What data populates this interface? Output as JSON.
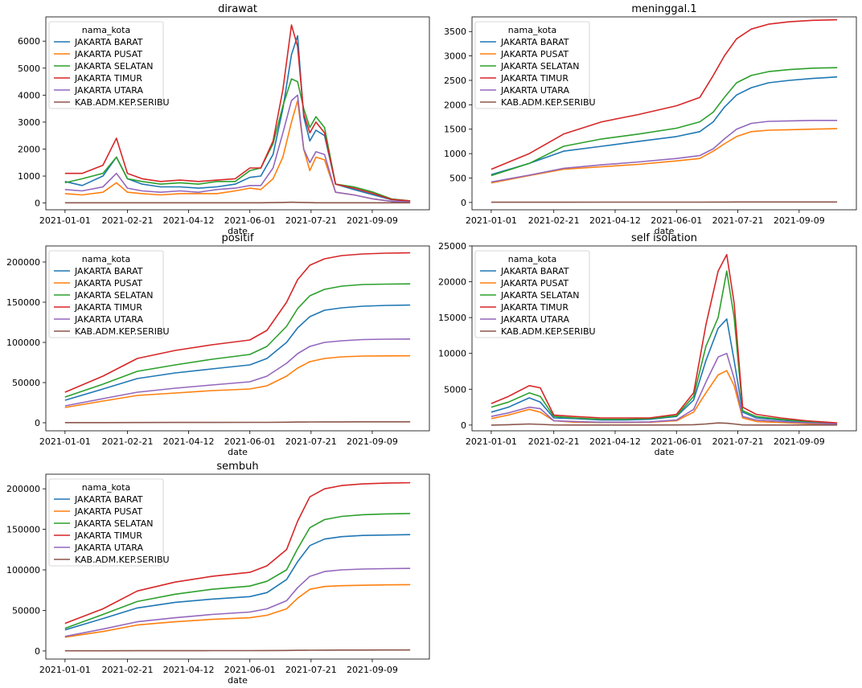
{
  "chart_data": [
    {
      "type": "line",
      "title": "dirawat",
      "xlabel": "date",
      "ylabel": "",
      "xticks": [
        "2021-01-01",
        "2021-02-21",
        "2021-04-12",
        "2021-06-01",
        "2021-07-21",
        "2021-09-09"
      ],
      "ylim": [
        -250,
        6900
      ],
      "yticks": [
        0,
        1000,
        2000,
        3000,
        4000,
        5000,
        6000
      ],
      "legend": {
        "title": "nama_kota",
        "position": "top-left"
      },
      "x": [
        "2021-01-01",
        "2021-01-15",
        "2021-02-01",
        "2021-02-12",
        "2021-02-21",
        "2021-03-05",
        "2021-03-20",
        "2021-04-05",
        "2021-04-20",
        "2021-05-05",
        "2021-05-20",
        "2021-06-01",
        "2021-06-10",
        "2021-06-20",
        "2021-06-28",
        "2021-07-05",
        "2021-07-10",
        "2021-07-15",
        "2021-07-20",
        "2021-07-25",
        "2021-08-01",
        "2021-08-10",
        "2021-08-25",
        "2021-09-10",
        "2021-09-25",
        "2021-10-10"
      ],
      "series": [
        {
          "name": "JAKARTA BARAT",
          "color": "#1f77b4",
          "values": [
            800,
            650,
            1000,
            1700,
            900,
            700,
            600,
            600,
            550,
            600,
            700,
            950,
            1000,
            1800,
            3500,
            5500,
            6200,
            3200,
            2300,
            2700,
            2500,
            700,
            500,
            300,
            120,
            70
          ]
        },
        {
          "name": "JAKARTA PUSAT",
          "color": "#ff7f0e",
          "values": [
            350,
            300,
            400,
            750,
            400,
            350,
            300,
            350,
            350,
            350,
            450,
            550,
            500,
            900,
            1700,
            3000,
            3800,
            2000,
            1200,
            1700,
            1600,
            400,
            300,
            150,
            60,
            40
          ]
        },
        {
          "name": "JAKARTA SELATAN",
          "color": "#2ca02c",
          "values": [
            750,
            900,
            1100,
            1700,
            900,
            800,
            700,
            750,
            700,
            800,
            800,
            1200,
            1300,
            2200,
            3600,
            4600,
            4500,
            3500,
            2800,
            3200,
            2800,
            700,
            600,
            400,
            150,
            80
          ]
        },
        {
          "name": "JAKARTA TIMUR",
          "color": "#d62728",
          "values": [
            1100,
            1100,
            1400,
            2400,
            1100,
            900,
            800,
            850,
            800,
            850,
            900,
            1300,
            1300,
            2300,
            4200,
            6600,
            5800,
            3300,
            2600,
            3000,
            2600,
            700,
            550,
            350,
            130,
            80
          ]
        },
        {
          "name": "JAKARTA UTARA",
          "color": "#9467bd",
          "values": [
            500,
            450,
            600,
            1100,
            550,
            450,
            400,
            450,
            400,
            500,
            550,
            650,
            650,
            1300,
            2600,
            3800,
            4000,
            2000,
            1500,
            1900,
            1800,
            400,
            300,
            150,
            60,
            40
          ]
        },
        {
          "name": "KAB.ADM.KEP.SERIBU",
          "color": "#8c564b",
          "values": [
            10,
            10,
            10,
            10,
            10,
            10,
            10,
            10,
            10,
            10,
            10,
            10,
            10,
            15,
            20,
            30,
            25,
            20,
            15,
            10,
            10,
            10,
            10,
            10,
            10,
            10
          ]
        }
      ]
    },
    {
      "type": "line",
      "title": "meninggal.1",
      "xlabel": "date",
      "ylabel": "",
      "xticks": [
        "2021-01-01",
        "2021-02-21",
        "2021-04-12",
        "2021-06-01",
        "2021-07-21",
        "2021-09-09"
      ],
      "ylim": [
        -150,
        3800
      ],
      "yticks": [
        0,
        500,
        1000,
        1500,
        2000,
        2500,
        3000,
        3500
      ],
      "legend": {
        "title": "nama_kota",
        "position": "top-left"
      },
      "x": [
        "2021-01-01",
        "2021-02-01",
        "2021-03-01",
        "2021-04-01",
        "2021-05-01",
        "2021-06-01",
        "2021-06-20",
        "2021-07-01",
        "2021-07-10",
        "2021-07-20",
        "2021-08-01",
        "2021-08-15",
        "2021-09-01",
        "2021-09-20",
        "2021-10-10"
      ],
      "series": [
        {
          "name": "JAKARTA BARAT",
          "color": "#1f77b4",
          "values": [
            570,
            800,
            1050,
            1150,
            1250,
            1350,
            1450,
            1650,
            1950,
            2200,
            2350,
            2450,
            2500,
            2540,
            2570
          ]
        },
        {
          "name": "JAKARTA PUSAT",
          "color": "#ff7f0e",
          "values": [
            400,
            550,
            680,
            730,
            780,
            850,
            900,
            1050,
            1200,
            1350,
            1450,
            1480,
            1490,
            1500,
            1510
          ]
        },
        {
          "name": "JAKARTA SELATAN",
          "color": "#2ca02c",
          "values": [
            550,
            800,
            1150,
            1300,
            1400,
            1520,
            1650,
            1850,
            2150,
            2450,
            2600,
            2680,
            2720,
            2750,
            2760
          ]
        },
        {
          "name": "JAKARTA TIMUR",
          "color": "#d62728",
          "values": [
            680,
            1000,
            1400,
            1650,
            1800,
            1980,
            2150,
            2600,
            3000,
            3350,
            3550,
            3650,
            3700,
            3730,
            3740
          ]
        },
        {
          "name": "JAKARTA UTARA",
          "color": "#9467bd",
          "values": [
            420,
            560,
            700,
            770,
            830,
            900,
            960,
            1100,
            1300,
            1500,
            1620,
            1660,
            1670,
            1680,
            1680
          ]
        },
        {
          "name": "KAB.ADM.KEP.SERIBU",
          "color": "#8c564b",
          "values": [
            5,
            5,
            5,
            6,
            6,
            7,
            7,
            8,
            8,
            9,
            10,
            10,
            10,
            10,
            10
          ]
        }
      ]
    },
    {
      "type": "line",
      "title": "positif",
      "xlabel": "date",
      "ylabel": "",
      "xticks": [
        "2021-01-01",
        "2021-02-21",
        "2021-04-12",
        "2021-06-01",
        "2021-07-21",
        "2021-09-09"
      ],
      "ylim": [
        -10000,
        220000
      ],
      "yticks": [
        0,
        50000,
        100000,
        150000,
        200000
      ],
      "legend": {
        "title": "nama_kota",
        "position": "top-left"
      },
      "x": [
        "2021-01-01",
        "2021-02-01",
        "2021-03-01",
        "2021-04-01",
        "2021-05-01",
        "2021-06-01",
        "2021-06-15",
        "2021-07-01",
        "2021-07-10",
        "2021-07-20",
        "2021-08-01",
        "2021-08-15",
        "2021-09-01",
        "2021-09-20",
        "2021-10-10"
      ],
      "series": [
        {
          "name": "JAKARTA BARAT",
          "color": "#1f77b4",
          "values": [
            28000,
            42000,
            55000,
            62000,
            67000,
            72000,
            80000,
            100000,
            118000,
            132000,
            140000,
            143000,
            145000,
            146000,
            146500
          ]
        },
        {
          "name": "JAKARTA PUSAT",
          "color": "#ff7f0e",
          "values": [
            19000,
            27000,
            34000,
            37000,
            40000,
            42000,
            46000,
            58000,
            68000,
            76000,
            80000,
            82000,
            83000,
            83200,
            83300
          ]
        },
        {
          "name": "JAKARTA SELATAN",
          "color": "#2ca02c",
          "values": [
            32000,
            48000,
            64000,
            72000,
            79000,
            85000,
            95000,
            120000,
            142000,
            158000,
            166000,
            170000,
            172000,
            172500,
            172800
          ]
        },
        {
          "name": "JAKARTA TIMUR",
          "color": "#d62728",
          "values": [
            38000,
            58000,
            80000,
            90000,
            97000,
            103000,
            115000,
            150000,
            178000,
            196000,
            204000,
            208000,
            210000,
            211000,
            211500
          ]
        },
        {
          "name": "JAKARTA UTARA",
          "color": "#9467bd",
          "values": [
            21000,
            30000,
            38000,
            43000,
            47000,
            51000,
            58000,
            74000,
            86000,
            95000,
            100000,
            102000,
            103500,
            104000,
            104200
          ]
        },
        {
          "name": "KAB.ADM.KEP.SERIBU",
          "color": "#8c564b",
          "values": [
            200,
            250,
            300,
            350,
            400,
            450,
            500,
            700,
            900,
            1000,
            1100,
            1150,
            1180,
            1200,
            1200
          ]
        }
      ]
    },
    {
      "type": "line",
      "title": "self isolation",
      "xlabel": "date",
      "ylabel": "",
      "xticks": [
        "2021-01-01",
        "2021-02-21",
        "2021-04-12",
        "2021-06-01",
        "2021-07-21",
        "2021-09-09"
      ],
      "ylim": [
        -800,
        25000
      ],
      "yticks": [
        0,
        5000,
        10000,
        15000,
        20000,
        25000
      ],
      "legend": {
        "title": "nama_kota",
        "position": "top-left"
      },
      "x": [
        "2021-01-01",
        "2021-01-15",
        "2021-02-01",
        "2021-02-10",
        "2021-02-21",
        "2021-03-10",
        "2021-04-01",
        "2021-04-20",
        "2021-05-10",
        "2021-06-01",
        "2021-06-15",
        "2021-06-25",
        "2021-07-05",
        "2021-07-12",
        "2021-07-18",
        "2021-07-25",
        "2021-08-05",
        "2021-08-25",
        "2021-09-15",
        "2021-10-10"
      ],
      "series": [
        {
          "name": "JAKARTA BARAT",
          "color": "#1f77b4",
          "values": [
            1800,
            2500,
            3800,
            3200,
            1000,
            900,
            700,
            700,
            800,
            1200,
            3500,
            9000,
            13500,
            14800,
            9000,
            1800,
            1000,
            700,
            400,
            200
          ]
        },
        {
          "name": "JAKARTA PUSAT",
          "color": "#ff7f0e",
          "values": [
            900,
            1400,
            2200,
            1800,
            600,
            400,
            350,
            350,
            400,
            600,
            1800,
            4500,
            7000,
            7600,
            5500,
            1000,
            500,
            350,
            200,
            100
          ]
        },
        {
          "name": "JAKARTA SELATAN",
          "color": "#2ca02c",
          "values": [
            2500,
            3200,
            4500,
            4000,
            1200,
            1000,
            800,
            800,
            900,
            1300,
            4000,
            11000,
            15000,
            21500,
            15000,
            2000,
            1200,
            800,
            500,
            250
          ]
        },
        {
          "name": "JAKARTA TIMUR",
          "color": "#d62728",
          "values": [
            3000,
            4000,
            5500,
            5200,
            1400,
            1200,
            1000,
            1000,
            1000,
            1500,
            4500,
            14000,
            21500,
            23800,
            17000,
            2500,
            1500,
            1000,
            600,
            300
          ]
        },
        {
          "name": "JAKARTA UTARA",
          "color": "#9467bd",
          "values": [
            1200,
            1700,
            2500,
            2300,
            600,
            500,
            400,
            400,
            450,
            700,
            2200,
            6000,
            9500,
            10000,
            6500,
            1200,
            700,
            500,
            300,
            150
          ]
        },
        {
          "name": "KAB.ADM.KEP.SERIBU",
          "color": "#8c564b",
          "values": [
            0,
            50,
            150,
            100,
            20,
            10,
            10,
            10,
            10,
            20,
            50,
            150,
            300,
            250,
            150,
            20,
            10,
            10,
            10,
            10
          ]
        }
      ]
    },
    {
      "type": "line",
      "title": "sembuh",
      "xlabel": "date",
      "ylabel": "",
      "xticks": [
        "2021-01-01",
        "2021-02-21",
        "2021-04-12",
        "2021-06-01",
        "2021-07-21",
        "2021-09-09"
      ],
      "ylim": [
        -10000,
        218000
      ],
      "yticks": [
        0,
        50000,
        100000,
        150000,
        200000
      ],
      "legend": {
        "title": "nama_kota",
        "position": "top-left"
      },
      "x": [
        "2021-01-01",
        "2021-02-01",
        "2021-03-01",
        "2021-04-01",
        "2021-05-01",
        "2021-06-01",
        "2021-06-15",
        "2021-07-01",
        "2021-07-10",
        "2021-07-20",
        "2021-08-01",
        "2021-08-15",
        "2021-09-01",
        "2021-09-20",
        "2021-10-10"
      ],
      "series": [
        {
          "name": "JAKARTA BARAT",
          "color": "#1f77b4",
          "values": [
            26000,
            40000,
            53000,
            60000,
            64000,
            67000,
            72000,
            88000,
            110000,
            130000,
            138000,
            141000,
            142500,
            143000,
            143500
          ]
        },
        {
          "name": "JAKARTA PUSAT",
          "color": "#ff7f0e",
          "values": [
            17000,
            24000,
            32000,
            36000,
            39000,
            41000,
            44000,
            52000,
            65000,
            76000,
            79500,
            80500,
            81000,
            81500,
            81800
          ]
        },
        {
          "name": "JAKARTA SELATAN",
          "color": "#2ca02c",
          "values": [
            28000,
            45000,
            61000,
            70000,
            76000,
            80000,
            86000,
            100000,
            126000,
            152000,
            162000,
            166000,
            168000,
            169000,
            169500
          ]
        },
        {
          "name": "JAKARTA TIMUR",
          "color": "#d62728",
          "values": [
            34000,
            52000,
            74000,
            85000,
            92000,
            97000,
            105000,
            125000,
            160000,
            190000,
            200000,
            204000,
            206000,
            207000,
            207500
          ]
        },
        {
          "name": "JAKARTA UTARA",
          "color": "#9467bd",
          "values": [
            18000,
            27000,
            36000,
            41000,
            45000,
            48000,
            52000,
            62000,
            78000,
            92000,
            98000,
            100000,
            101000,
            101500,
            101800
          ]
        },
        {
          "name": "KAB.ADM.KEP.SERIBU",
          "color": "#8c564b",
          "values": [
            200,
            250,
            300,
            350,
            400,
            450,
            500,
            600,
            800,
            950,
            1050,
            1100,
            1150,
            1180,
            1200
          ]
        }
      ]
    }
  ]
}
